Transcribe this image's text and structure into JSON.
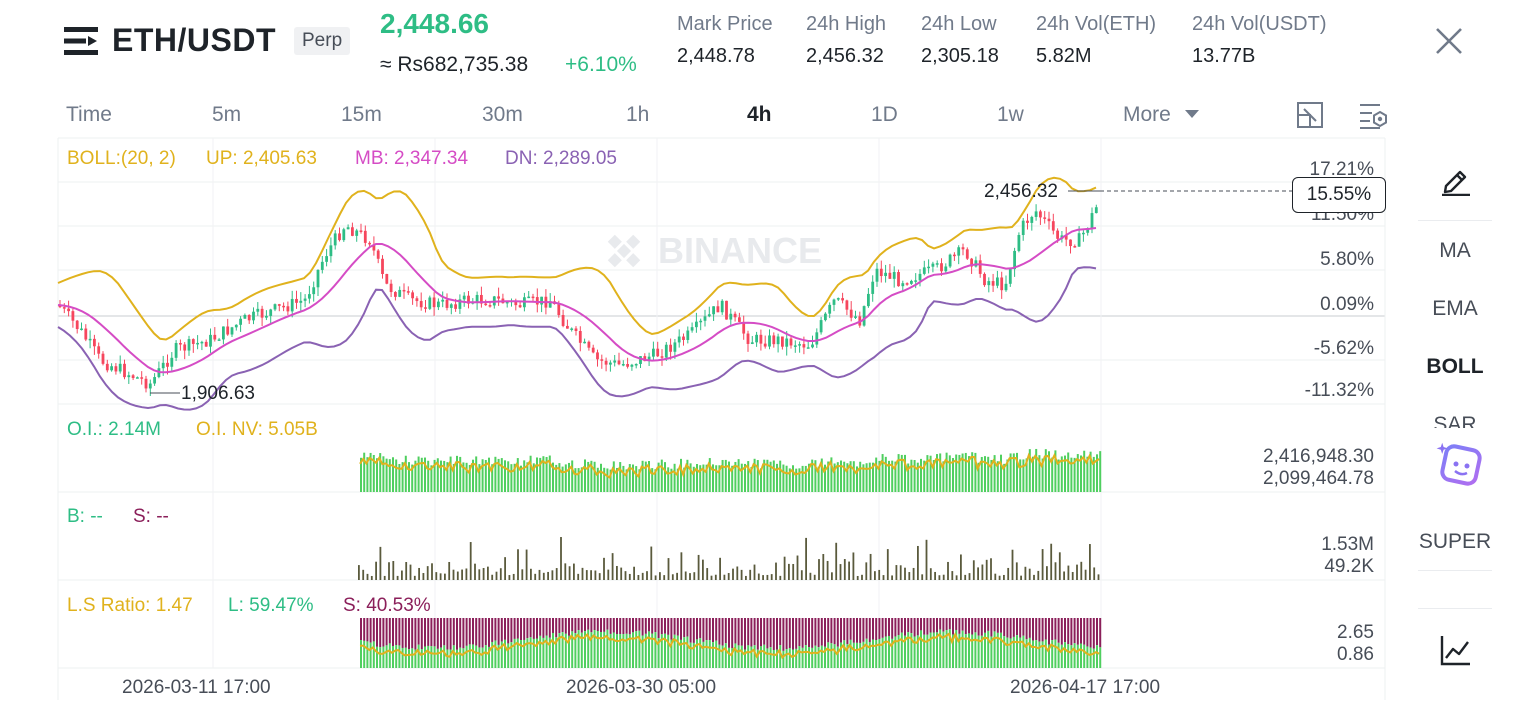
{
  "header": {
    "pair": "ETH/USDT",
    "contract_badge": "Perp",
    "last_price": "2,448.66",
    "inr_price": "≈ Rs682,735.38",
    "change_pct": "+6.10%",
    "stats": [
      {
        "label": "Mark Price",
        "value": "2,448.78"
      },
      {
        "label": "24h High",
        "value": "2,456.32"
      },
      {
        "label": "24h Low",
        "value": "2,305.18"
      },
      {
        "label": "24h Vol(ETH)",
        "value": "5.82M"
      },
      {
        "label": "24h Vol(USDT)",
        "value": "13.77B"
      }
    ],
    "menu_icon": "menu-icon",
    "close_icon": "close-icon"
  },
  "timeframes": [
    "Time",
    "5m",
    "15m",
    "30m",
    "1h",
    "4h",
    "1D",
    "1w",
    "More"
  ],
  "active_timeframe": "4h",
  "toolbar_icons": [
    "chart-type-icon",
    "settings-icon"
  ],
  "watermark": "BINANCE",
  "main_chart": {
    "legend": {
      "boll": "BOLL:(20, 2)",
      "up": "UP: 2,405.63",
      "mb": "MB: 2,347.34",
      "dn": "DN: 2,289.05"
    },
    "axis_labels": [
      "17.21%",
      "11.50%",
      "5.80%",
      "0.09%",
      "-5.62%",
      "-11.32%"
    ],
    "current_pct": "15.55%",
    "high_marker": "2,456.32",
    "low_marker": "1,906.63"
  },
  "oi_panel": {
    "label_oi": "O.I.: 2.14M",
    "label_nv": "O.I. NV: 5.05B",
    "axis_labels": [
      "2,416,948.30",
      "2,099,464.78"
    ]
  },
  "bs_panel": {
    "label_b": "B: --",
    "label_s": "S: --",
    "axis_labels": [
      "1.53M",
      "49.2K"
    ]
  },
  "ls_panel": {
    "label_ratio": "L.S Ratio: 1.47",
    "label_l": "L: 59.47%",
    "label_s": "S: 40.53%",
    "axis_labels": [
      "2.65",
      "0.86"
    ]
  },
  "x_axis": [
    "2026-03-11 17:00",
    "2026-03-30 05:00",
    "2026-04-17 17:00"
  ],
  "sidebar": {
    "draw_icon": "pencil-icon",
    "items": [
      "MA",
      "EMA",
      "BOLL",
      "SAR"
    ],
    "active": "BOLL",
    "ai_icon": "ai-assistant-icon",
    "super": "SUPER",
    "bottom_icon": "indicator-chart-icon"
  },
  "colors": {
    "up": "#2ebd85",
    "down": "#f6465d",
    "boll_up": "#e0b21d",
    "boll_mb": "#d54cc5",
    "boll_dn": "#8a62b3",
    "oi_bar": "#4fcf5f",
    "short": "#8b1f5a"
  }
}
